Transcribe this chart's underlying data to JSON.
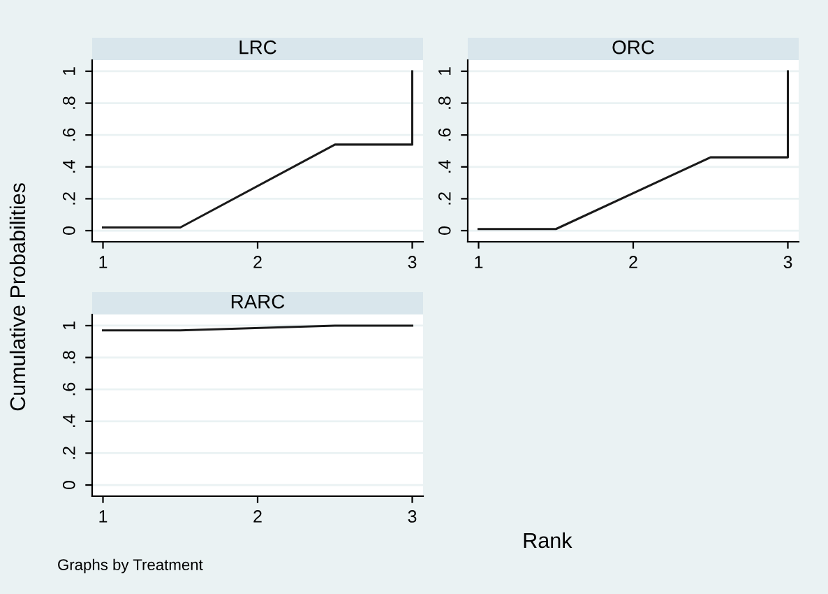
{
  "chart_data": [
    {
      "type": "line",
      "title": "LRC",
      "ylabel": "Cumulative Probabilities",
      "series": [
        {
          "color": "#1a1a1a",
          "x": [
            1,
            1.5,
            2.5,
            3,
            3
          ],
          "values": [
            0.02,
            0.02,
            0.54,
            0.54,
            1
          ]
        }
      ],
      "xlim": [
        0.93,
        3.07
      ],
      "ylim": [
        -0.07,
        1.07
      ],
      "xticks": [
        1,
        2,
        3
      ],
      "yticks": [
        0,
        {
          "value": 0.2,
          "label": ".2"
        },
        {
          "value": 0.4,
          "label": ".4"
        },
        {
          "value": 0.6,
          "label": ".6"
        },
        {
          "value": 0.8,
          "label": ".8"
        },
        1
      ],
      "grid": "y"
    },
    {
      "type": "line",
      "title": "ORC",
      "series": [
        {
          "color": "#1a1a1a",
          "x": [
            1,
            1.5,
            2.5,
            3,
            3
          ],
          "values": [
            0.01,
            0.01,
            0.46,
            0.46,
            1
          ]
        }
      ],
      "xlim": [
        0.93,
        3.07
      ],
      "ylim": [
        -0.07,
        1.07
      ],
      "xticks": [
        1,
        2,
        3
      ],
      "yticks": [
        0,
        {
          "value": 0.2,
          "label": ".2"
        },
        {
          "value": 0.4,
          "label": ".4"
        },
        {
          "value": 0.6,
          "label": ".6"
        },
        {
          "value": 0.8,
          "label": ".8"
        },
        1
      ],
      "grid": "y"
    },
    {
      "type": "line",
      "title": "RARC",
      "xlabel": "Rank",
      "annotations": [
        "Graphs by Treatment"
      ],
      "series": [
        {
          "color": "#1a1a1a",
          "x": [
            1,
            1.5,
            2.5,
            3,
            3
          ],
          "values": [
            0.97,
            0.97,
            1,
            1,
            1
          ]
        }
      ],
      "xlim": [
        0.93,
        3.07
      ],
      "ylim": [
        -0.07,
        1.07
      ],
      "xticks": [
        1,
        2,
        3
      ],
      "yticks": [
        0,
        {
          "value": 0.2,
          "label": ".2"
        },
        {
          "value": 0.4,
          "label": ".4"
        },
        {
          "value": 0.6,
          "label": ".6"
        },
        {
          "value": 0.8,
          "label": ".8"
        },
        1
      ],
      "grid": "y"
    }
  ]
}
